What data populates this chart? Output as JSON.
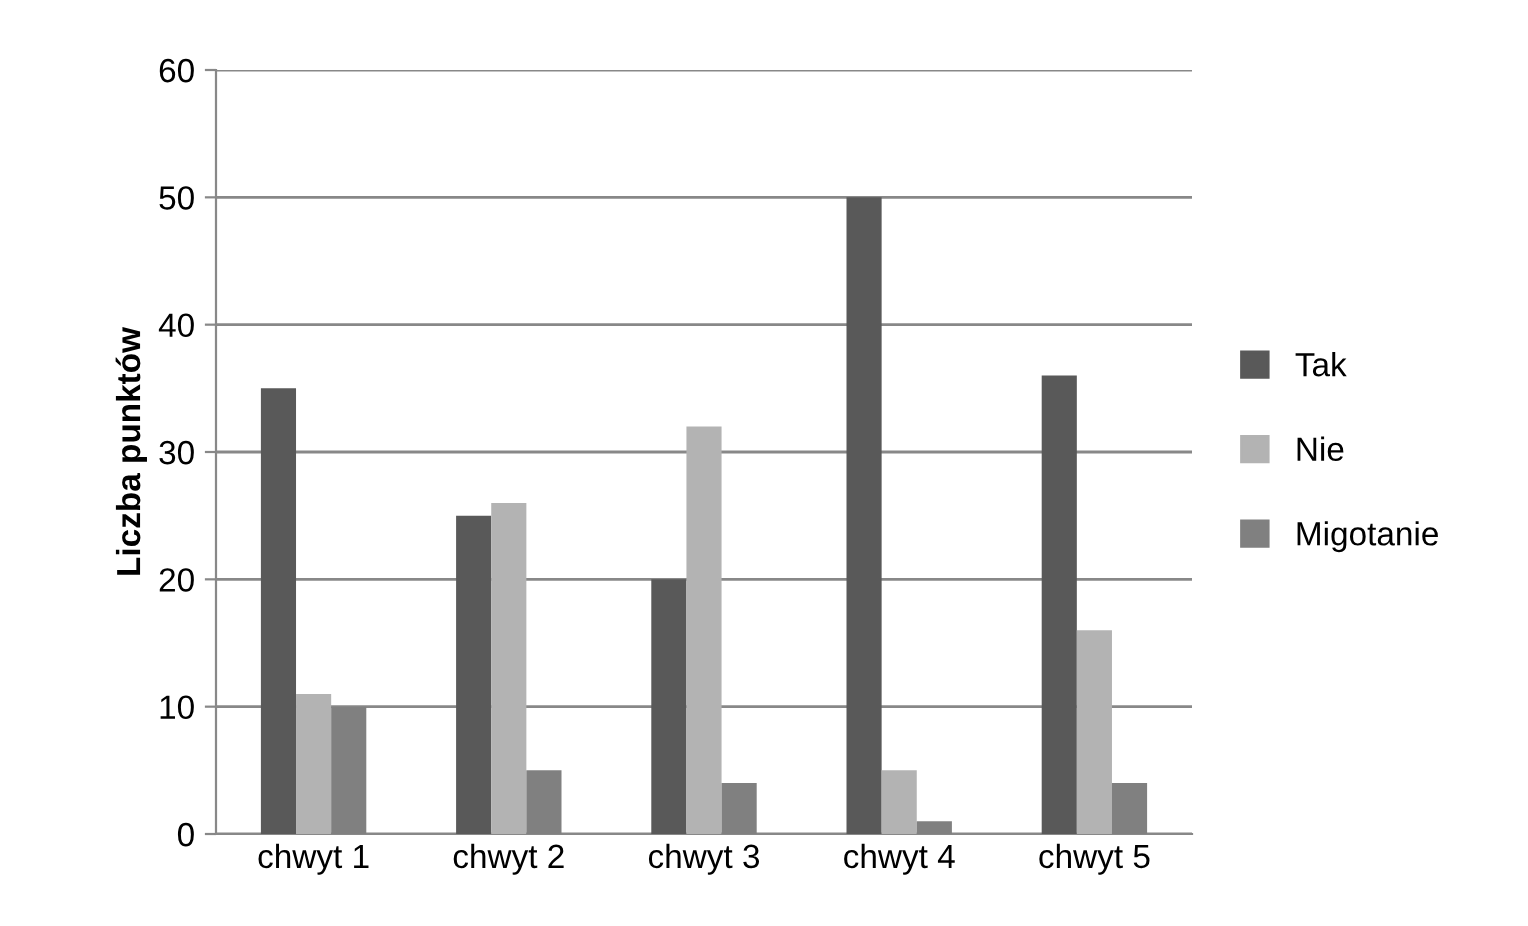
{
  "chart_data": {
    "type": "bar",
    "ylabel": "Liczba punktów",
    "categories": [
      "chwyt 1",
      "chwyt 2",
      "chwyt 3",
      "chwyt 4",
      "chwyt 5"
    ],
    "series": [
      {
        "name": "Tak",
        "color": "#595959",
        "values": [
          35,
          25,
          20,
          50,
          36
        ]
      },
      {
        "name": "Nie",
        "color": "#b3b3b3",
        "values": [
          11,
          26,
          32,
          5,
          16
        ]
      },
      {
        "name": "Migotanie",
        "color": "#808080",
        "values": [
          10,
          5,
          4,
          1,
          4
        ]
      }
    ],
    "ylim": [
      0,
      60
    ],
    "yticks": [
      0,
      10,
      20,
      30,
      40,
      50,
      60
    ],
    "grid": "y",
    "legend": "right"
  }
}
